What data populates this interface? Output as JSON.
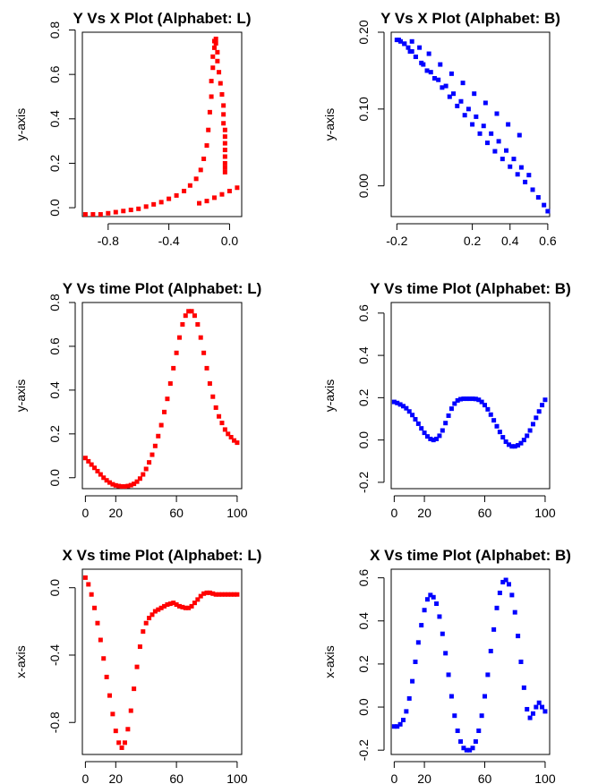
{
  "chart_data": [
    {
      "type": "scatter",
      "title": "Y Vs X Plot (Alphabet: L)",
      "xlabel": "",
      "ylabel": "y-axis",
      "xlim": [
        -0.97,
        0.08
      ],
      "ylim": [
        -0.04,
        0.79
      ],
      "xticks": [
        -0.8,
        -0.4,
        0.0
      ],
      "xtick_labels": [
        "-0.8",
        "-0.4",
        "0.0"
      ],
      "yticks": [
        0.0,
        0.2,
        0.4,
        0.6,
        0.8
      ],
      "ytick_labels": [
        "0.0",
        "0.2",
        "0.4",
        "0.6",
        "0.8"
      ],
      "color": "#ff0000",
      "x": [
        -0.95,
        -0.9,
        -0.85,
        -0.8,
        -0.75,
        -0.7,
        -0.65,
        -0.6,
        -0.55,
        -0.5,
        -0.45,
        -0.4,
        -0.35,
        -0.3,
        -0.26,
        -0.22,
        -0.19,
        -0.17,
        -0.15,
        -0.14,
        -0.13,
        -0.12,
        -0.12,
        -0.11,
        -0.11,
        -0.1,
        -0.1,
        -0.09,
        -0.09,
        -0.08,
        -0.08,
        -0.07,
        -0.06,
        -0.05,
        -0.04,
        -0.04,
        -0.04,
        -0.03,
        -0.03,
        -0.03,
        -0.03,
        -0.03,
        -0.03,
        -0.03,
        -0.03,
        -0.2,
        -0.15,
        -0.1,
        -0.05,
        0.0,
        0.05
      ],
      "y": [
        -0.03,
        -0.03,
        -0.03,
        -0.025,
        -0.02,
        -0.015,
        -0.01,
        -0.005,
        0.005,
        0.015,
        0.025,
        0.04,
        0.055,
        0.075,
        0.1,
        0.13,
        0.17,
        0.22,
        0.28,
        0.35,
        0.43,
        0.5,
        0.57,
        0.63,
        0.68,
        0.72,
        0.75,
        0.76,
        0.74,
        0.7,
        0.66,
        0.61,
        0.56,
        0.51,
        0.46,
        0.42,
        0.38,
        0.35,
        0.32,
        0.29,
        0.26,
        0.23,
        0.2,
        0.18,
        0.16,
        0.02,
        0.03,
        0.045,
        0.06,
        0.075,
        0.09
      ]
    },
    {
      "type": "scatter",
      "title": "Y Vs X Plot (Alphabet: B)",
      "xlabel": "",
      "ylabel": "y-axis",
      "xlim": [
        -0.23,
        0.61
      ],
      "ylim": [
        -0.04,
        0.2
      ],
      "xticks": [
        -0.2,
        0.2,
        0.4,
        0.6
      ],
      "xtick_labels": [
        "-0.2",
        "0.2",
        "0.4",
        "0.6"
      ],
      "yticks": [
        0.0,
        0.1,
        0.2
      ],
      "ytick_labels": [
        "0.00",
        "0.10",
        "0.20"
      ],
      "color": "#0000ff",
      "x": [
        -0.2,
        -0.18,
        -0.16,
        -0.14,
        -0.12,
        -0.1,
        -0.07,
        -0.04,
        0.0,
        0.04,
        0.08,
        0.12,
        0.16,
        0.2,
        0.24,
        0.28,
        0.32,
        0.36,
        0.4,
        0.44,
        0.48,
        0.52,
        0.55,
        0.58,
        0.6,
        -0.19,
        -0.16,
        -0.13,
        -0.1,
        -0.06,
        -0.02,
        0.02,
        0.06,
        0.1,
        0.14,
        0.18,
        0.22,
        0.26,
        0.3,
        0.34,
        0.38,
        0.42,
        0.46,
        0.5,
        -0.12,
        -0.08,
        -0.03,
        0.03,
        0.09,
        0.15,
        0.21,
        0.27,
        0.33,
        0.39,
        0.45
      ],
      "y": [
        0.19,
        0.188,
        0.185,
        0.18,
        0.175,
        0.168,
        0.16,
        0.15,
        0.14,
        0.128,
        0.116,
        0.104,
        0.092,
        0.08,
        0.068,
        0.056,
        0.045,
        0.035,
        0.025,
        0.015,
        0.005,
        -0.005,
        -0.015,
        -0.025,
        -0.033,
        0.19,
        0.185,
        0.175,
        0.168,
        0.158,
        0.148,
        0.138,
        0.13,
        0.12,
        0.11,
        0.1,
        0.09,
        0.078,
        0.068,
        0.058,
        0.046,
        0.035,
        0.024,
        0.014,
        0.188,
        0.18,
        0.172,
        0.158,
        0.146,
        0.134,
        0.12,
        0.108,
        0.094,
        0.08,
        0.066
      ]
    },
    {
      "type": "scatter",
      "title": "Y Vs time Plot (Alphabet: L)",
      "xlabel": "",
      "ylabel": "y-axis",
      "xlim": [
        -2,
        103
      ],
      "ylim": [
        -0.05,
        0.8
      ],
      "xticks": [
        0,
        20,
        60,
        100
      ],
      "xtick_labels": [
        "0",
        "20",
        "60",
        "100"
      ],
      "yticks": [
        0.0,
        0.2,
        0.4,
        0.6,
        0.8
      ],
      "ytick_labels": [
        "0.0",
        "0.2",
        "0.4",
        "0.6",
        "0.8"
      ],
      "color": "#ff0000",
      "x": [
        0,
        2,
        4,
        6,
        8,
        10,
        12,
        14,
        16,
        18,
        20,
        22,
        24,
        26,
        28,
        30,
        32,
        34,
        36,
        38,
        40,
        42,
        44,
        46,
        48,
        50,
        52,
        54,
        56,
        58,
        60,
        62,
        64,
        66,
        68,
        70,
        72,
        74,
        76,
        78,
        80,
        82,
        84,
        86,
        88,
        90,
        92,
        94,
        96,
        98,
        100
      ],
      "y": [
        0.09,
        0.075,
        0.06,
        0.045,
        0.03,
        0.015,
        0.0,
        -0.012,
        -0.022,
        -0.03,
        -0.035,
        -0.038,
        -0.04,
        -0.04,
        -0.038,
        -0.034,
        -0.028,
        -0.018,
        -0.004,
        0.015,
        0.04,
        0.07,
        0.105,
        0.145,
        0.19,
        0.24,
        0.3,
        0.36,
        0.43,
        0.5,
        0.57,
        0.64,
        0.7,
        0.74,
        0.76,
        0.76,
        0.74,
        0.7,
        0.64,
        0.57,
        0.5,
        0.43,
        0.37,
        0.32,
        0.28,
        0.25,
        0.22,
        0.2,
        0.185,
        0.17,
        0.16
      ]
    },
    {
      "type": "scatter",
      "title": "Y Vs time Plot (Alphabet: B)",
      "xlabel": "",
      "ylabel": "y-axis",
      "xlim": [
        -2,
        103
      ],
      "ylim": [
        -0.23,
        0.65
      ],
      "xticks": [
        0,
        20,
        60,
        100
      ],
      "xtick_labels": [
        "0",
        "20",
        "60",
        "100"
      ],
      "yticks": [
        -0.2,
        0.0,
        0.2,
        0.4,
        0.6
      ],
      "ytick_labels": [
        "-0.2",
        "0.0",
        "0.2",
        "0.4",
        "0.6"
      ],
      "color": "#0000ff",
      "x": [
        0,
        2,
        4,
        6,
        8,
        10,
        12,
        14,
        16,
        18,
        20,
        22,
        24,
        26,
        28,
        30,
        32,
        34,
        36,
        38,
        40,
        42,
        44,
        46,
        48,
        50,
        52,
        54,
        56,
        58,
        60,
        62,
        64,
        66,
        68,
        70,
        72,
        74,
        76,
        78,
        80,
        82,
        84,
        86,
        88,
        90,
        92,
        94,
        96,
        98,
        100
      ],
      "y": [
        0.18,
        0.175,
        0.168,
        0.16,
        0.15,
        0.135,
        0.118,
        0.098,
        0.077,
        0.055,
        0.034,
        0.017,
        0.005,
        0.0,
        0.005,
        0.02,
        0.045,
        0.08,
        0.115,
        0.148,
        0.172,
        0.187,
        0.193,
        0.195,
        0.195,
        0.195,
        0.195,
        0.194,
        0.19,
        0.18,
        0.165,
        0.145,
        0.12,
        0.093,
        0.065,
        0.038,
        0.013,
        -0.008,
        -0.022,
        -0.03,
        -0.03,
        -0.025,
        -0.015,
        0.0,
        0.02,
        0.045,
        0.075,
        0.105,
        0.135,
        0.165,
        0.19
      ]
    },
    {
      "type": "scatter",
      "title": "X Vs time Plot (Alphabet: L)",
      "xlabel": "",
      "ylabel": "x-axis",
      "xlim": [
        -2,
        103
      ],
      "ylim": [
        -0.99,
        0.11
      ],
      "xticks": [
        0,
        20,
        60,
        100
      ],
      "xtick_labels": [
        "0",
        "20",
        "60",
        "100"
      ],
      "yticks": [
        -0.8,
        -0.4,
        0.0
      ],
      "ytick_labels": [
        "-0.8",
        "-0.4",
        "0.0"
      ],
      "color": "#ff0000",
      "x": [
        0,
        2,
        4,
        6,
        8,
        10,
        12,
        14,
        16,
        18,
        20,
        22,
        24,
        26,
        28,
        30,
        32,
        34,
        36,
        38,
        40,
        42,
        44,
        46,
        48,
        50,
        52,
        54,
        56,
        58,
        60,
        62,
        64,
        66,
        68,
        70,
        72,
        74,
        76,
        78,
        80,
        82,
        84,
        86,
        88,
        90,
        92,
        94,
        96,
        98,
        100
      ],
      "y": [
        0.06,
        0.02,
        -0.04,
        -0.12,
        -0.21,
        -0.31,
        -0.42,
        -0.53,
        -0.64,
        -0.75,
        -0.85,
        -0.92,
        -0.95,
        -0.92,
        -0.84,
        -0.73,
        -0.6,
        -0.47,
        -0.35,
        -0.26,
        -0.21,
        -0.18,
        -0.16,
        -0.14,
        -0.13,
        -0.12,
        -0.11,
        -0.1,
        -0.095,
        -0.09,
        -0.1,
        -0.11,
        -0.115,
        -0.12,
        -0.12,
        -0.11,
        -0.09,
        -0.07,
        -0.05,
        -0.035,
        -0.03,
        -0.03,
        -0.035,
        -0.04,
        -0.04,
        -0.04,
        -0.04,
        -0.04,
        -0.04,
        -0.04,
        -0.04
      ]
    },
    {
      "type": "scatter",
      "title": "X Vs time Plot (Alphabet: B)",
      "xlabel": "",
      "ylabel": "x-axis",
      "xlim": [
        -2,
        103
      ],
      "ylim": [
        -0.22,
        0.64
      ],
      "xticks": [
        0,
        20,
        60,
        100
      ],
      "xtick_labels": [
        "0",
        "20",
        "60",
        "100"
      ],
      "yticks": [
        -0.2,
        0.0,
        0.2,
        0.4,
        0.6
      ],
      "ytick_labels": [
        "-0.2",
        "0.0",
        "0.2",
        "0.4",
        "0.6"
      ],
      "color": "#0000ff",
      "x": [
        0,
        2,
        4,
        6,
        8,
        10,
        12,
        14,
        16,
        18,
        20,
        22,
        24,
        26,
        28,
        30,
        32,
        34,
        36,
        38,
        40,
        42,
        44,
        46,
        48,
        50,
        52,
        54,
        56,
        58,
        60,
        62,
        64,
        66,
        68,
        70,
        72,
        74,
        76,
        78,
        80,
        82,
        84,
        86,
        88,
        90,
        92,
        94,
        96,
        98,
        100
      ],
      "y": [
        -0.09,
        -0.09,
        -0.08,
        -0.06,
        -0.02,
        0.04,
        0.12,
        0.21,
        0.3,
        0.38,
        0.45,
        0.5,
        0.52,
        0.51,
        0.48,
        0.42,
        0.34,
        0.25,
        0.15,
        0.05,
        -0.04,
        -0.11,
        -0.16,
        -0.19,
        -0.2,
        -0.2,
        -0.19,
        -0.16,
        -0.11,
        -0.04,
        0.05,
        0.15,
        0.26,
        0.36,
        0.46,
        0.53,
        0.58,
        0.59,
        0.57,
        0.52,
        0.44,
        0.33,
        0.21,
        0.09,
        -0.01,
        -0.05,
        -0.03,
        0.0,
        0.02,
        0.0,
        -0.02
      ]
    }
  ]
}
